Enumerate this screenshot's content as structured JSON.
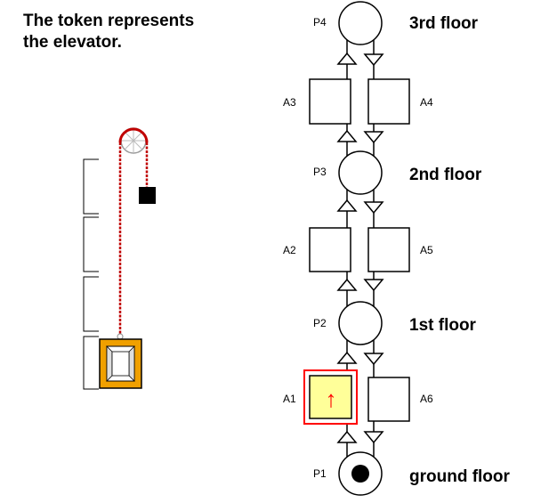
{
  "caption": {
    "line1": "The token represents",
    "line2": "the elevator."
  },
  "places": [
    {
      "id": "P4",
      "label": "P4",
      "floor": "3rd floor",
      "token": false
    },
    {
      "id": "P3",
      "label": "P3",
      "floor": "2nd floor",
      "token": false
    },
    {
      "id": "P2",
      "label": "P2",
      "floor": "1st floor",
      "token": false
    },
    {
      "id": "P1",
      "label": "P1",
      "floor": "ground floor",
      "token": true
    }
  ],
  "transitions_up": [
    "A3",
    "A2",
    "A1"
  ],
  "transitions_down": [
    "A4",
    "A5",
    "A6"
  ],
  "active_transition": {
    "id": "A1",
    "symbol": "↑"
  },
  "colors": {
    "highlight_border": "#ff0000",
    "highlight_fill": "#ffff99",
    "arrow_symbol": "#ff0000",
    "cable": "#c00000",
    "cabin": "#f0a000",
    "counterweight": "#000000"
  }
}
